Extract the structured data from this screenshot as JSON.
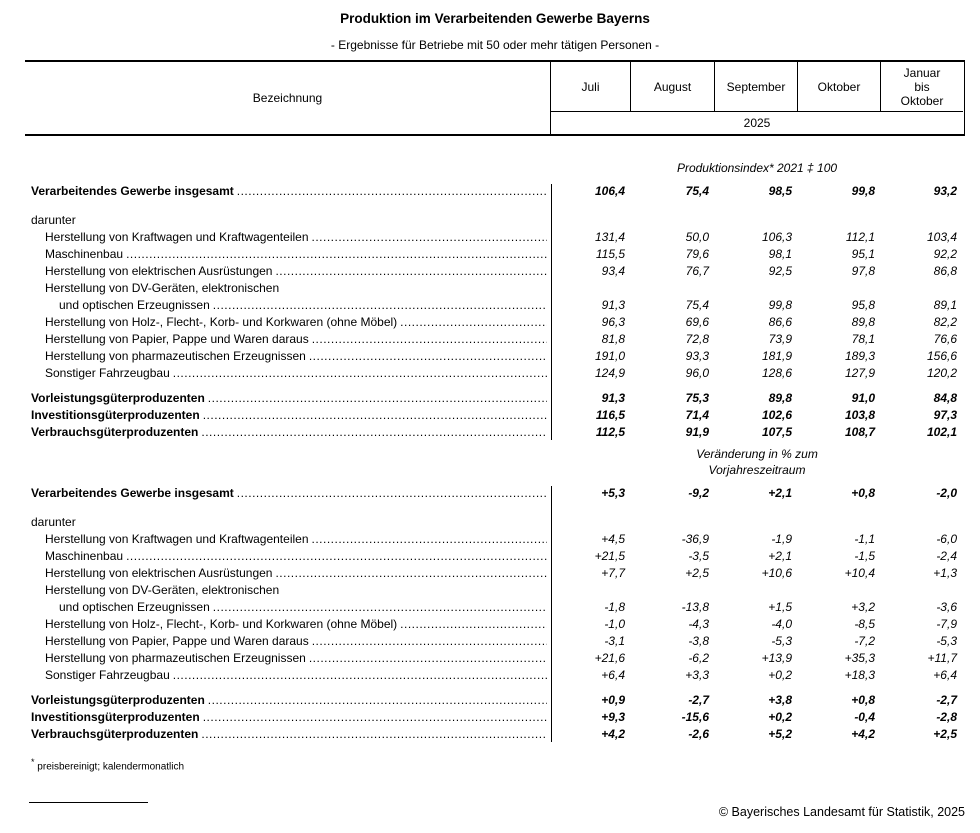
{
  "title": "Produktion im Verarbeitenden Gewerbe Bayerns",
  "subtitle": "- Ergebnisse für Betriebe mit 50 oder mehr tätigen Personen -",
  "table": {
    "label_header": "Bezeichnung",
    "columns": [
      "Juli",
      "August",
      "September",
      "Oktober",
      "Januar\nbis\nOktober"
    ],
    "year": "2025",
    "sections": [
      {
        "header_lines": [
          "Produktionsindex* 2021 ‡ 100"
        ],
        "rows": [
          {
            "label": "Verarbeitendes Gewerbe insgesamt",
            "indent": 0,
            "bold": true,
            "dots": true,
            "gap": "",
            "values": [
              "106,4",
              "75,4",
              "98,5",
              "99,8",
              "93,2"
            ]
          },
          {
            "label": "darunter",
            "indent": 0,
            "bold": false,
            "dots": false,
            "gap": "lg",
            "values": null
          },
          {
            "label": "Herstellung von Kraftwagen und Kraftwagenteilen",
            "indent": 1,
            "bold": false,
            "dots": true,
            "gap": "",
            "values": [
              "131,4",
              "50,0",
              "106,3",
              "112,1",
              "103,4"
            ]
          },
          {
            "label": "Maschinenbau",
            "indent": 1,
            "bold": false,
            "dots": true,
            "gap": "",
            "values": [
              "115,5",
              "79,6",
              "98,1",
              "95,1",
              "92,2"
            ]
          },
          {
            "label": "Herstellung von elektrischen Ausrüstungen",
            "indent": 1,
            "bold": false,
            "dots": true,
            "gap": "",
            "values": [
              "93,4",
              "76,7",
              "92,5",
              "97,8",
              "86,8"
            ]
          },
          {
            "label": "Herstellung von DV-Geräten, elektronischen",
            "indent": 1,
            "bold": false,
            "dots": false,
            "gap": "",
            "values": null
          },
          {
            "label": "und optischen Erzeugnissen",
            "indent": 2,
            "bold": false,
            "dots": true,
            "gap": "",
            "values": [
              "91,3",
              "75,4",
              "99,8",
              "95,8",
              "89,1"
            ]
          },
          {
            "label": "Herstellung von Holz-, Flecht-, Korb- und Korkwaren (ohne Möbel)",
            "indent": 1,
            "bold": false,
            "dots": true,
            "gap": "",
            "values": [
              "96,3",
              "69,6",
              "86,6",
              "89,8",
              "82,2"
            ]
          },
          {
            "label": "Herstellung von Papier, Pappe und Waren daraus",
            "indent": 1,
            "bold": false,
            "dots": true,
            "gap": "",
            "values": [
              "81,8",
              "72,8",
              "73,9",
              "78,1",
              "76,6"
            ]
          },
          {
            "label": "Herstellung von pharmazeutischen Erzeugnissen",
            "indent": 1,
            "bold": false,
            "dots": true,
            "gap": "",
            "values": [
              "191,0",
              "93,3",
              "181,9",
              "189,3",
              "156,6"
            ]
          },
          {
            "label": "Sonstiger Fahrzeugbau",
            "indent": 1,
            "bold": false,
            "dots": true,
            "gap": "",
            "values": [
              "124,9",
              "96,0",
              "128,6",
              "127,9",
              "120,2"
            ]
          },
          {
            "label": "Vorleistungsgüterproduzenten",
            "indent": 0,
            "bold": true,
            "dots": true,
            "gap": "sm",
            "values": [
              "91,3",
              "75,3",
              "89,8",
              "91,0",
              "84,8"
            ]
          },
          {
            "label": "Investitionsgüterproduzenten",
            "indent": 0,
            "bold": true,
            "dots": true,
            "gap": "",
            "values": [
              "116,5",
              "71,4",
              "102,6",
              "103,8",
              "97,3"
            ]
          },
          {
            "label": "Verbrauchsgüterproduzenten",
            "indent": 0,
            "bold": true,
            "dots": true,
            "gap": "",
            "values": [
              "112,5",
              "91,9",
              "107,5",
              "108,7",
              "102,1"
            ]
          }
        ]
      },
      {
        "header_lines": [
          "Veränderung in % zum",
          "Vorjahreszeitraum"
        ],
        "rows": [
          {
            "label": "Verarbeitendes Gewerbe insgesamt",
            "indent": 0,
            "bold": true,
            "dots": true,
            "gap": "",
            "values": [
              "+5,3",
              "-9,2",
              "+2,1",
              "+0,8",
              "-2,0"
            ]
          },
          {
            "label": "darunter",
            "indent": 0,
            "bold": false,
            "dots": false,
            "gap": "lg",
            "values": null
          },
          {
            "label": "Herstellung von Kraftwagen und Kraftwagenteilen",
            "indent": 1,
            "bold": false,
            "dots": true,
            "gap": "",
            "values": [
              "+4,5",
              "-36,9",
              "-1,9",
              "-1,1",
              "-6,0"
            ]
          },
          {
            "label": "Maschinenbau",
            "indent": 1,
            "bold": false,
            "dots": true,
            "gap": "",
            "values": [
              "+21,5",
              "-3,5",
              "+2,1",
              "-1,5",
              "-2,4"
            ]
          },
          {
            "label": "Herstellung von elektrischen Ausrüstungen",
            "indent": 1,
            "bold": false,
            "dots": true,
            "gap": "",
            "values": [
              "+7,7",
              "+2,5",
              "+10,6",
              "+10,4",
              "+1,3"
            ]
          },
          {
            "label": "Herstellung von DV-Geräten, elektronischen",
            "indent": 1,
            "bold": false,
            "dots": false,
            "gap": "",
            "values": null
          },
          {
            "label": "und optischen Erzeugnissen",
            "indent": 2,
            "bold": false,
            "dots": true,
            "gap": "",
            "values": [
              "-1,8",
              "-13,8",
              "+1,5",
              "+3,2",
              "-3,6"
            ]
          },
          {
            "label": "Herstellung von Holz-, Flecht-, Korb- und Korkwaren (ohne Möbel)",
            "indent": 1,
            "bold": false,
            "dots": true,
            "gap": "",
            "values": [
              "-1,0",
              "-4,3",
              "-4,0",
              "-8,5",
              "-7,9"
            ]
          },
          {
            "label": "Herstellung von Papier, Pappe und Waren daraus",
            "indent": 1,
            "bold": false,
            "dots": true,
            "gap": "",
            "values": [
              "-3,1",
              "-3,8",
              "-5,3",
              "-7,2",
              "-5,3"
            ]
          },
          {
            "label": "Herstellung von pharmazeutischen Erzeugnissen",
            "indent": 1,
            "bold": false,
            "dots": true,
            "gap": "",
            "values": [
              "+21,6",
              "-6,2",
              "+13,9",
              "+35,3",
              "+11,7"
            ]
          },
          {
            "label": "Sonstiger Fahrzeugbau",
            "indent": 1,
            "bold": false,
            "dots": true,
            "gap": "",
            "values": [
              "+6,4",
              "+3,3",
              "+0,2",
              "+18,3",
              "+6,4"
            ]
          },
          {
            "label": "Vorleistungsgüterproduzenten",
            "indent": 0,
            "bold": true,
            "dots": true,
            "gap": "sm",
            "values": [
              "+0,9",
              "-2,7",
              "+3,8",
              "+0,8",
              "-2,7"
            ]
          },
          {
            "label": "Investitionsgüterproduzenten",
            "indent": 0,
            "bold": true,
            "dots": true,
            "gap": "",
            "values": [
              "+9,3",
              "-15,6",
              "+0,2",
              "-0,4",
              "-2,8"
            ]
          },
          {
            "label": "Verbrauchsgüterproduzenten",
            "indent": 0,
            "bold": true,
            "dots": true,
            "gap": "",
            "values": [
              "+4,2",
              "-2,6",
              "+5,2",
              "+4,2",
              "+2,5"
            ]
          }
        ]
      }
    ]
  },
  "footnote_marker": "*",
  "footnote": "preisbereinigt; kalendermonatlich",
  "copyright": "© Bayerisches Landesamt für Statistik, 2025"
}
